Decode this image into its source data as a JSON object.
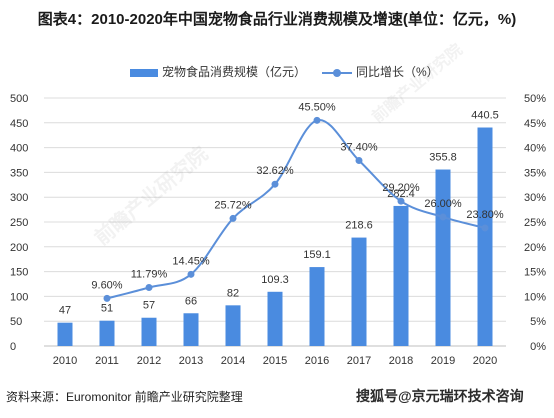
{
  "title": "图表4：2010-2020年中国宠物食品行业消费规模及增速(单位：亿元，%)",
  "source": "资料来源：Euromonitor 前瞻产业研究院整理",
  "watermark": "搜狐号@京元瑞环技术咨询",
  "watermark_logo_text": "前瞻产业研究院",
  "colors": {
    "bar": "#4a8be0",
    "line": "#5b8fd9",
    "grid": "#dcdcdc",
    "text": "#333333"
  },
  "chart_data": {
    "type": "bar",
    "categories": [
      "2010",
      "2011",
      "2012",
      "2013",
      "2014",
      "2015",
      "2016",
      "2017",
      "2018",
      "2019",
      "2020"
    ],
    "series": [
      {
        "name": "宠物食品消费规模（亿元）",
        "type": "bar",
        "axis": "left",
        "values": [
          47,
          51,
          57,
          66,
          82,
          109.3,
          159.1,
          218.6,
          282.4,
          355.8,
          440.5
        ],
        "labels": [
          "47",
          "51",
          "57",
          "66",
          "82",
          "109.3",
          "159.1",
          "218.6",
          "282.4",
          "355.8",
          "440.5"
        ]
      },
      {
        "name": "同比增长（%）",
        "type": "line",
        "axis": "right",
        "x": [
          "2011",
          "2012",
          "2013",
          "2014",
          "2015",
          "2016",
          "2017",
          "2018",
          "2019",
          "2020"
        ],
        "values": [
          9.6,
          11.79,
          14.45,
          25.72,
          32.62,
          45.5,
          37.4,
          29.2,
          26.0,
          23.8
        ],
        "labels": [
          "9.60%",
          "11.79%",
          "14.45%",
          "25.72%",
          "32.62%",
          "45.50%",
          "37.40%",
          "29.20%",
          "26.00%",
          "23.80%"
        ]
      }
    ],
    "ylim": [
      0,
      500
    ],
    "yticks": [
      "0",
      "50",
      "100",
      "150",
      "200",
      "250",
      "300",
      "350",
      "400",
      "450",
      "500"
    ],
    "y2lim": [
      0,
      50
    ],
    "y2ticks": [
      "0%",
      "5%",
      "10%",
      "15%",
      "20%",
      "25%",
      "30%",
      "35%",
      "40%",
      "45%",
      "50%"
    ],
    "grid": true,
    "legend": "top-center"
  }
}
